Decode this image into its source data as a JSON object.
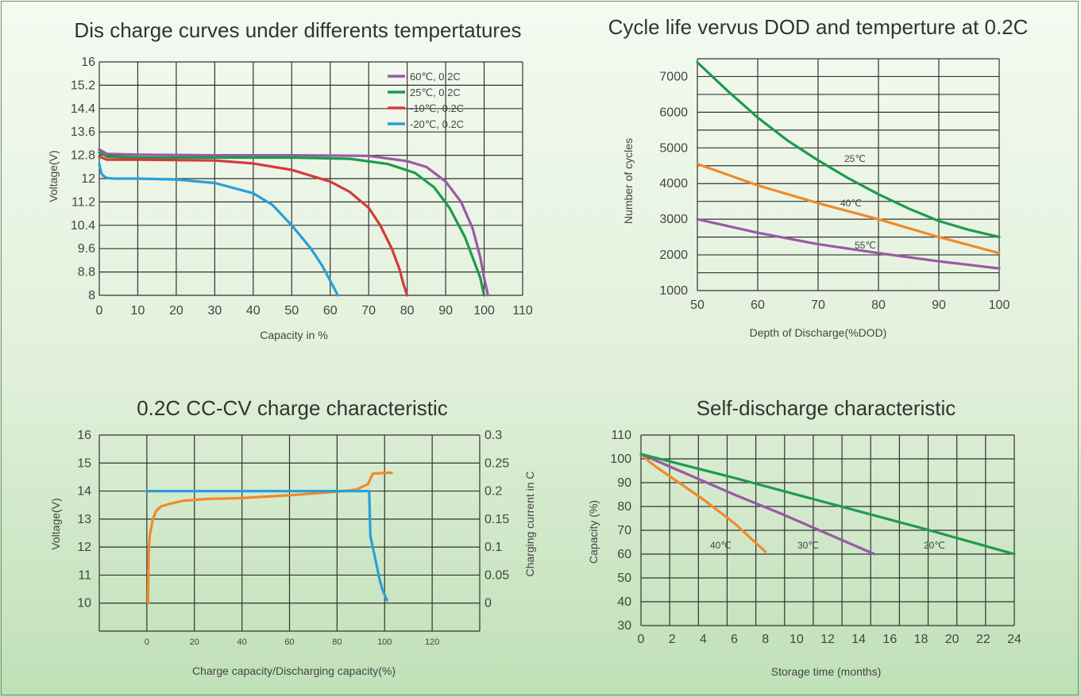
{
  "chart_data": [
    {
      "id": "discharge",
      "type": "line",
      "title": "Dis charge curves under differents tempertatures",
      "xlabel": "Capacity in %",
      "ylabel": "Voltage(V)",
      "xlim": [
        0,
        110
      ],
      "ylim": [
        8,
        16
      ],
      "xticks": [
        "0",
        "10",
        "20",
        "30",
        "40",
        "50",
        "60",
        "70",
        "80",
        "90",
        "100",
        "110"
      ],
      "yticks": [
        "8",
        "8.8",
        "9.6",
        "10.4",
        "11.2",
        "12",
        "12.8",
        "13.6",
        "14.4",
        "15.2",
        "16"
      ],
      "grid": true,
      "legend": "top-right",
      "series": [
        {
          "name": "60℃, 0.2C",
          "color": "#9b59a6",
          "x": [
            0,
            2,
            10,
            30,
            50,
            70,
            80,
            85,
            90,
            94,
            97,
            99,
            100,
            101
          ],
          "y": [
            13.0,
            12.85,
            12.82,
            12.8,
            12.8,
            12.78,
            12.6,
            12.4,
            11.9,
            11.2,
            10.3,
            9.3,
            8.6,
            8.0
          ]
        },
        {
          "name": "25℃, 0.2C",
          "color": "#1e9b4c",
          "x": [
            0,
            2,
            10,
            30,
            50,
            65,
            75,
            82,
            87,
            91,
            95,
            97,
            99,
            100
          ],
          "y": [
            12.9,
            12.75,
            12.72,
            12.72,
            12.72,
            12.68,
            12.5,
            12.2,
            11.7,
            11.0,
            10.0,
            9.3,
            8.6,
            8.0
          ]
        },
        {
          "name": "-10℃, 0.2C",
          "color": "#d6393a",
          "x": [
            0,
            2,
            10,
            30,
            40,
            50,
            60,
            65,
            70,
            73,
            76,
            78,
            79,
            80
          ],
          "y": [
            12.75,
            12.65,
            12.65,
            12.62,
            12.52,
            12.3,
            11.9,
            11.55,
            11.0,
            10.4,
            9.6,
            8.9,
            8.4,
            8.0
          ]
        },
        {
          "name": "-20℃, 0.2C",
          "color": "#2a9fd8",
          "x": [
            0,
            0.5,
            1,
            2,
            4,
            10,
            20,
            30,
            40,
            45,
            50,
            55,
            58,
            60,
            62
          ],
          "y": [
            12.5,
            12.2,
            12.1,
            12.02,
            12.0,
            12.0,
            11.97,
            11.85,
            11.5,
            11.1,
            10.4,
            9.6,
            9.0,
            8.5,
            8.0
          ]
        }
      ]
    },
    {
      "id": "cycle",
      "type": "line",
      "title": "Cycle life vervus DOD and temperture at 0.2C",
      "xlabel": "Depth of Discharge(%DOD)",
      "ylabel": "Number of cycles",
      "xlim": [
        50,
        100
      ],
      "ylim": [
        1000,
        7500
      ],
      "xticks": [
        "50",
        "60",
        "70",
        "80",
        "90",
        "100"
      ],
      "yticks": [
        "1000",
        "2000",
        "3000",
        "4000",
        "5000",
        "6000",
        "7000"
      ],
      "grid": true,
      "annotations": [
        "25℃",
        "40℃",
        "55℃"
      ],
      "series": [
        {
          "name": "25℃",
          "color": "#1e9b4c",
          "x": [
            50,
            55,
            60,
            65,
            70,
            75,
            80,
            85,
            90,
            95,
            100
          ],
          "y": [
            7400,
            6600,
            5850,
            5200,
            4650,
            4150,
            3700,
            3300,
            2950,
            2700,
            2500
          ]
        },
        {
          "name": "40℃",
          "color": "#f08a2a",
          "x": [
            50,
            60,
            70,
            80,
            90,
            100
          ],
          "y": [
            4550,
            3950,
            3450,
            3000,
            2500,
            2050
          ]
        },
        {
          "name": "55℃",
          "color": "#9b59a6",
          "x": [
            50,
            60,
            70,
            80,
            90,
            100
          ],
          "y": [
            3000,
            2620,
            2300,
            2050,
            1820,
            1620
          ]
        }
      ]
    },
    {
      "id": "charge",
      "type": "line",
      "title": "0.2C  CC-CV charge characteristic",
      "xlabel": "Charge capacity/Discharging capacity(%)",
      "ylabel": "Voltage(V)",
      "y2label": "Charging current in C",
      "xlim": [
        -20,
        140
      ],
      "ylim": [
        9,
        16
      ],
      "y2lim": [
        -0.05,
        0.3
      ],
      "xticks": [
        "0",
        "20",
        "40",
        "60",
        "80",
        "100",
        "120"
      ],
      "yticks": [
        "10",
        "11",
        "12",
        "13",
        "14",
        "15",
        "16"
      ],
      "y2ticks": [
        "0",
        "0.05",
        "0.1",
        "0.15",
        "0.2",
        "0.25",
        "0.3"
      ],
      "grid": true,
      "series": [
        {
          "name": "Voltage",
          "color": "#f08a2a",
          "x": [
            0.5,
            0.6,
            0.8,
            1.2,
            2.5,
            4,
            6,
            10,
            15,
            25,
            40,
            60,
            80,
            88,
            93,
            95,
            100,
            103
          ],
          "y": [
            10.0,
            11.0,
            11.8,
            12.4,
            13.0,
            13.3,
            13.45,
            13.55,
            13.65,
            13.72,
            13.75,
            13.85,
            13.98,
            14.05,
            14.25,
            14.62,
            14.65,
            14.65
          ]
        },
        {
          "name": "Charging current",
          "color": "#2a9fd8",
          "axis": "y2",
          "x": [
            0,
            92,
            93.5,
            94,
            96,
            98,
            99,
            100,
            101
          ],
          "y": [
            0.2,
            0.2,
            0.2,
            0.12,
            0.08,
            0.04,
            0.025,
            0.015,
            0.005
          ]
        }
      ]
    },
    {
      "id": "selfdischarge",
      "type": "line",
      "title": "Self-discharge characteristic",
      "xlabel": "Storage time (months)",
      "ylabel": "Capacity (%)",
      "xlim": [
        0,
        24
      ],
      "ylim": [
        30,
        110
      ],
      "xticks": [
        "0",
        "2",
        "4",
        "6",
        "8",
        "10",
        "12",
        "14",
        "16",
        "18",
        "20",
        "22",
        "24"
      ],
      "yticks": [
        "30",
        "40",
        "50",
        "60",
        "70",
        "80",
        "90",
        "100",
        "110"
      ],
      "grid": true,
      "annotations": [
        "40℃",
        "30℃",
        "20℃"
      ],
      "series": [
        {
          "name": "40℃",
          "color": "#f08a2a",
          "x": [
            0,
            0.5,
            1,
            2,
            4,
            6,
            8
          ],
          "y": [
            102,
            99,
            96.5,
            92,
            83,
            73,
            61
          ]
        },
        {
          "name": "30℃",
          "color": "#9b59a6",
          "x": [
            0,
            3,
            6,
            9,
            12,
            15
          ],
          "y": [
            102,
            93.5,
            85,
            77,
            68.5,
            60
          ]
        },
        {
          "name": "20℃",
          "color": "#1e9b4c",
          "x": [
            0,
            6,
            12,
            18,
            24
          ],
          "y": [
            102,
            92,
            81.5,
            71,
            60
          ]
        }
      ]
    }
  ]
}
